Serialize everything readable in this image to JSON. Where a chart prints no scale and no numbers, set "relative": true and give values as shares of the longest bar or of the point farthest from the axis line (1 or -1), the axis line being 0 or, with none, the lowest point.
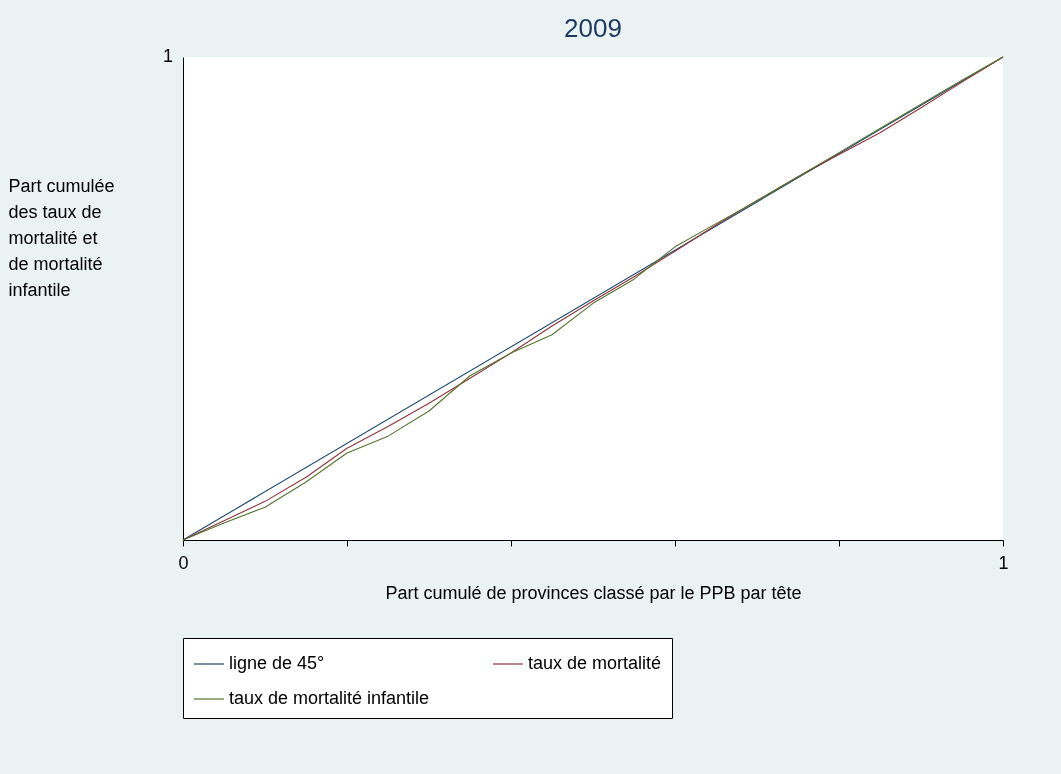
{
  "chart_data": {
    "type": "line",
    "title": "2009",
    "xlabel": "Part cumulé de  provinces classé par le PPB par tête",
    "ylabel": "Part cumulée des taux de mortalité et de mortalité infantile",
    "x": [
      0,
      0.05,
      0.1,
      0.15,
      0.2,
      0.25,
      0.3,
      0.35,
      0.4,
      0.45,
      0.5,
      0.55,
      0.6,
      0.65,
      0.7,
      0.75,
      0.8,
      0.85,
      0.9,
      0.95,
      1
    ],
    "series": [
      {
        "name": "ligne de 45°",
        "color": "#1a476f",
        "x": [
          0,
          1
        ],
        "values": [
          0,
          1
        ]
      },
      {
        "name": "taux de mortalité",
        "color": "#90353b",
        "values": [
          0,
          0.04,
          0.08,
          0.13,
          0.19,
          0.235,
          0.283,
          0.335,
          0.387,
          0.443,
          0.495,
          0.545,
          0.598,
          0.652,
          0.703,
          0.752,
          0.798,
          0.843,
          0.895,
          0.948,
          1
        ]
      },
      {
        "name": "taux de mortalité infantile",
        "color": "#55752f",
        "values": [
          0,
          0.035,
          0.068,
          0.12,
          0.18,
          0.215,
          0.267,
          0.34,
          0.387,
          0.425,
          0.49,
          0.54,
          0.607,
          0.655,
          0.702,
          0.752,
          0.802,
          0.852,
          0.902,
          0.952,
          1
        ]
      }
    ],
    "xlim": [
      0,
      1
    ],
    "relative": true,
    "annotations": [
      "1"
    ],
    "xticks": [
      0,
      {
        "value": 0.2,
        "label": null
      },
      {
        "value": 0.4,
        "label": null
      },
      {
        "value": 0.6,
        "label": null
      },
      {
        "value": 0.8,
        "label": null
      },
      1
    ],
    "legend": "bottom",
    "line_style": "solid",
    "marker": "none"
  }
}
